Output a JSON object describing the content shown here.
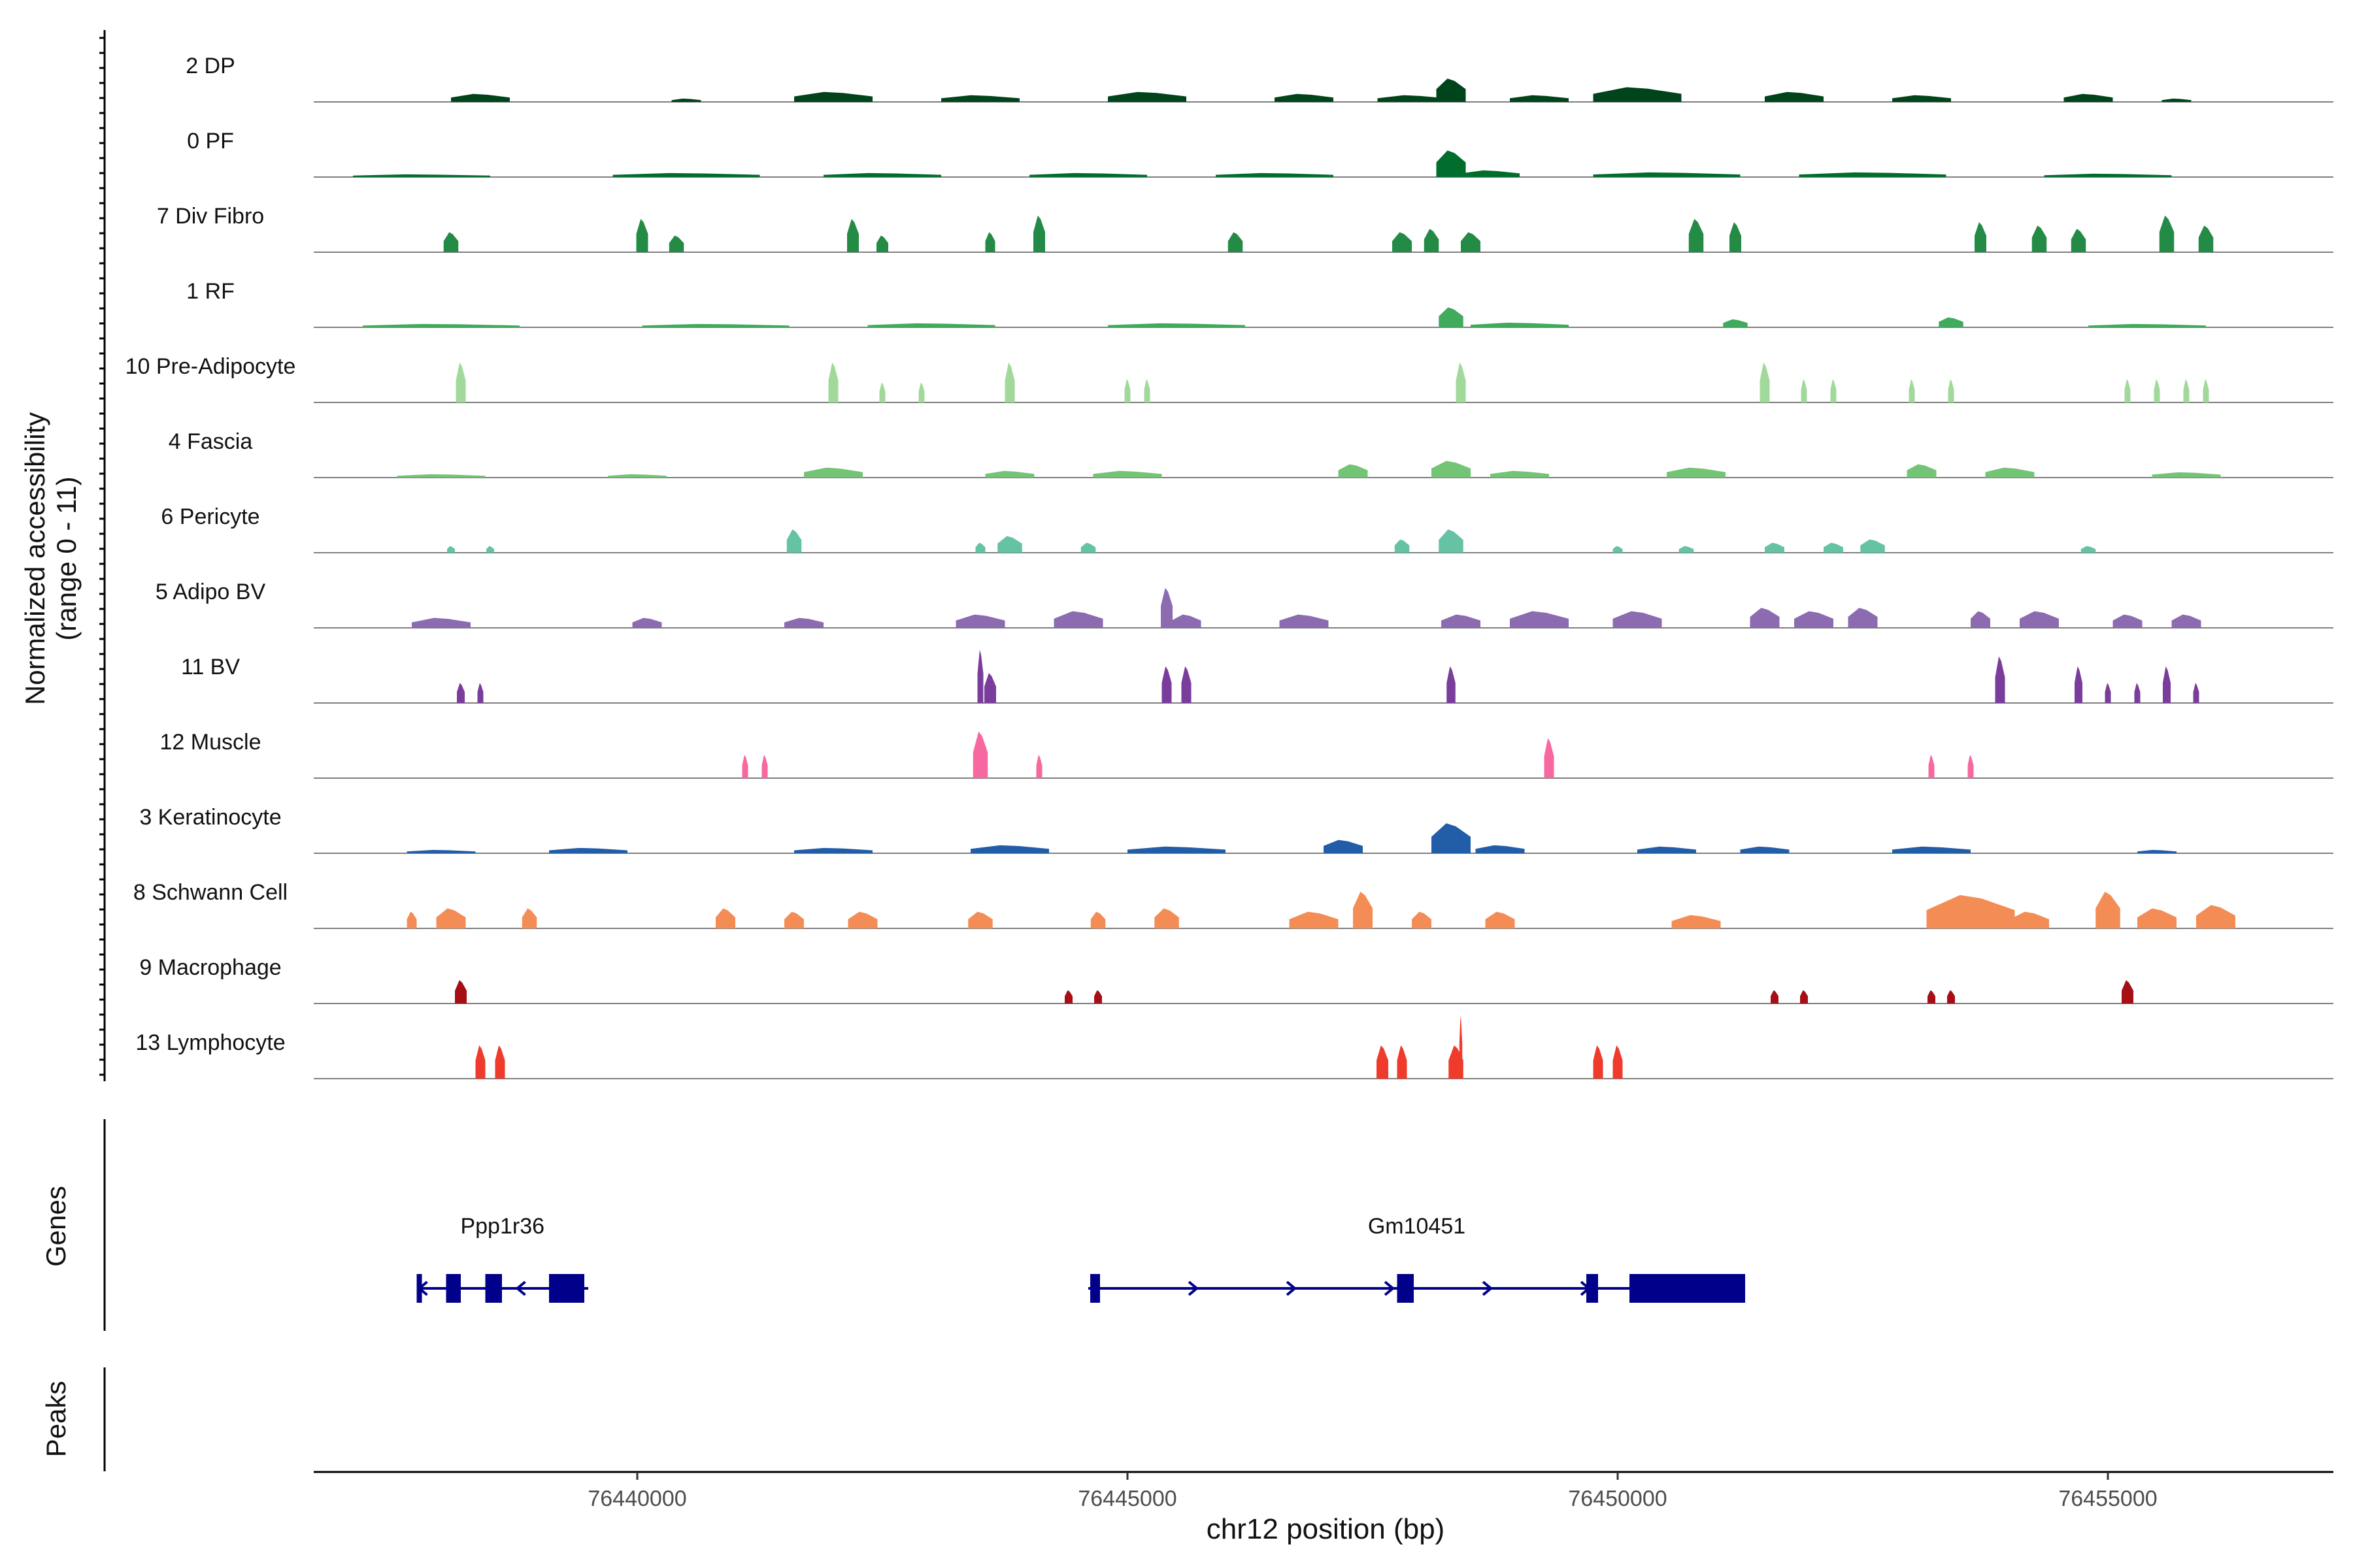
{
  "chart_data": {
    "type": "area",
    "title": "",
    "ylabel_line1": "Normalized accessibility",
    "ylabel_line2": "(range 0 - 11)",
    "xlabel": "chr12 position (bp)",
    "y_range": [
      0,
      11
    ],
    "xlim": [
      76436700,
      76457300
    ],
    "x_ticks": [
      76440000,
      76445000,
      76450000,
      76455000
    ],
    "x_tick_labels": [
      "76440000",
      "76445000",
      "76450000",
      "76455000"
    ],
    "genes_label": "Genes",
    "peaks_label": "Peaks",
    "gene_color": "#00008B",
    "tracks": [
      {
        "name": "2 DP",
        "color": "#00441B",
        "peaks": [
          [
            76438400,
            0.12,
            600
          ],
          [
            76440500,
            0.05,
            300
          ],
          [
            76442000,
            0.15,
            800
          ],
          [
            76443500,
            0.1,
            800
          ],
          [
            76445200,
            0.15,
            800
          ],
          [
            76446800,
            0.12,
            600
          ],
          [
            76447900,
            0.1,
            700
          ],
          [
            76448300,
            0.35,
            300
          ],
          [
            76449200,
            0.1,
            600
          ],
          [
            76450200,
            0.22,
            900
          ],
          [
            76451800,
            0.15,
            600
          ],
          [
            76453100,
            0.1,
            600
          ],
          [
            76454800,
            0.12,
            500
          ],
          [
            76455700,
            0.05,
            300
          ]
        ]
      },
      {
        "name": "0 PF",
        "color": "#006D2C",
        "peaks": [
          [
            76437800,
            0.04,
            1400
          ],
          [
            76440500,
            0.06,
            1500
          ],
          [
            76442500,
            0.06,
            1200
          ],
          [
            76444600,
            0.06,
            1200
          ],
          [
            76446500,
            0.06,
            1200
          ],
          [
            76448300,
            0.4,
            300
          ],
          [
            76448700,
            0.1,
            600
          ],
          [
            76450500,
            0.07,
            1500
          ],
          [
            76452600,
            0.07,
            1500
          ],
          [
            76455000,
            0.05,
            1300
          ]
        ]
      },
      {
        "name": "7 Div Fibro",
        "color": "#238B45",
        "peaks": [
          [
            76438100,
            0.3,
            150
          ],
          [
            76440050,
            0.5,
            120
          ],
          [
            76440400,
            0.25,
            150
          ],
          [
            76442200,
            0.5,
            120
          ],
          [
            76442500,
            0.25,
            120
          ],
          [
            76443600,
            0.3,
            100
          ],
          [
            76444100,
            0.55,
            120
          ],
          [
            76446100,
            0.3,
            150
          ],
          [
            76447800,
            0.3,
            200
          ],
          [
            76448100,
            0.35,
            150
          ],
          [
            76448500,
            0.3,
            200
          ],
          [
            76450800,
            0.5,
            150
          ],
          [
            76451200,
            0.45,
            120
          ],
          [
            76453700,
            0.45,
            120
          ],
          [
            76454300,
            0.4,
            150
          ],
          [
            76454700,
            0.35,
            150
          ],
          [
            76455600,
            0.55,
            150
          ],
          [
            76456000,
            0.4,
            150
          ]
        ]
      },
      {
        "name": "1 RF",
        "color": "#41AB5D",
        "peaks": [
          [
            76438000,
            0.05,
            1600
          ],
          [
            76440800,
            0.05,
            1500
          ],
          [
            76443000,
            0.06,
            1300
          ],
          [
            76445500,
            0.06,
            1400
          ],
          [
            76448300,
            0.3,
            250
          ],
          [
            76449000,
            0.07,
            1000
          ],
          [
            76451200,
            0.12,
            250
          ],
          [
            76453400,
            0.15,
            250
          ],
          [
            76455400,
            0.05,
            1200
          ]
        ]
      },
      {
        "name": "10 Pre-Adipocyte",
        "color": "#A1D99B",
        "peaks": [
          [
            76438200,
            0.6,
            100
          ],
          [
            76442000,
            0.6,
            100
          ],
          [
            76442500,
            0.3,
            60
          ],
          [
            76442900,
            0.3,
            60
          ],
          [
            76443800,
            0.6,
            100
          ],
          [
            76445000,
            0.35,
            60
          ],
          [
            76445200,
            0.35,
            60
          ],
          [
            76448400,
            0.6,
            100
          ],
          [
            76451500,
            0.6,
            100
          ],
          [
            76451900,
            0.35,
            60
          ],
          [
            76452200,
            0.35,
            60
          ],
          [
            76453000,
            0.35,
            60
          ],
          [
            76453400,
            0.35,
            60
          ],
          [
            76455200,
            0.35,
            60
          ],
          [
            76455500,
            0.35,
            60
          ],
          [
            76455800,
            0.35,
            60
          ],
          [
            76456000,
            0.35,
            60
          ]
        ]
      },
      {
        "name": "4 Fascia",
        "color": "#74C476",
        "peaks": [
          [
            76438000,
            0.05,
            900
          ],
          [
            76440000,
            0.05,
            600
          ],
          [
            76442000,
            0.15,
            600
          ],
          [
            76443800,
            0.1,
            500
          ],
          [
            76445000,
            0.1,
            700
          ],
          [
            76447300,
            0.2,
            300
          ],
          [
            76448300,
            0.25,
            400
          ],
          [
            76449000,
            0.1,
            600
          ],
          [
            76450800,
            0.15,
            600
          ],
          [
            76453100,
            0.2,
            300
          ],
          [
            76454000,
            0.15,
            500
          ],
          [
            76455800,
            0.08,
            700
          ]
        ]
      },
      {
        "name": "6 Pericyte",
        "color": "#66C2A4",
        "peaks": [
          [
            76438100,
            0.1,
            80
          ],
          [
            76438500,
            0.1,
            80
          ],
          [
            76441600,
            0.35,
            150
          ],
          [
            76443500,
            0.15,
            100
          ],
          [
            76443800,
            0.25,
            250
          ],
          [
            76444600,
            0.15,
            150
          ],
          [
            76447800,
            0.2,
            150
          ],
          [
            76448300,
            0.35,
            250
          ],
          [
            76450000,
            0.1,
            100
          ],
          [
            76450700,
            0.1,
            150
          ],
          [
            76451600,
            0.15,
            200
          ],
          [
            76452200,
            0.15,
            200
          ],
          [
            76452600,
            0.2,
            250
          ],
          [
            76454800,
            0.1,
            150
          ]
        ]
      },
      {
        "name": "5 Adipo BV",
        "color": "#8C6BB1",
        "peaks": [
          [
            76438000,
            0.15,
            600
          ],
          [
            76440100,
            0.15,
            300
          ],
          [
            76441700,
            0.15,
            400
          ],
          [
            76443500,
            0.2,
            500
          ],
          [
            76444500,
            0.25,
            500
          ],
          [
            76445400,
            0.6,
            120
          ],
          [
            76445600,
            0.2,
            300
          ],
          [
            76446800,
            0.2,
            500
          ],
          [
            76448400,
            0.2,
            400
          ],
          [
            76449200,
            0.25,
            600
          ],
          [
            76450200,
            0.25,
            500
          ],
          [
            76451500,
            0.3,
            300
          ],
          [
            76452000,
            0.25,
            400
          ],
          [
            76452500,
            0.3,
            300
          ],
          [
            76453700,
            0.25,
            200
          ],
          [
            76454300,
            0.25,
            400
          ],
          [
            76455200,
            0.2,
            300
          ],
          [
            76455800,
            0.2,
            300
          ]
        ]
      },
      {
        "name": "11 BV",
        "color": "#7A3D9B",
        "peaks": [
          [
            76438200,
            0.3,
            80
          ],
          [
            76438400,
            0.3,
            60
          ],
          [
            76443500,
            0.8,
            60
          ],
          [
            76443600,
            0.45,
            120
          ],
          [
            76445400,
            0.55,
            100
          ],
          [
            76445600,
            0.55,
            100
          ],
          [
            76448300,
            0.55,
            90
          ],
          [
            76453900,
            0.7,
            100
          ],
          [
            76454700,
            0.55,
            80
          ],
          [
            76455000,
            0.3,
            60
          ],
          [
            76455300,
            0.3,
            60
          ],
          [
            76455600,
            0.55,
            80
          ],
          [
            76455900,
            0.3,
            60
          ]
        ]
      },
      {
        "name": "12 Muscle",
        "color": "#F768A1",
        "peaks": [
          [
            76441100,
            0.35,
            60
          ],
          [
            76441300,
            0.35,
            60
          ],
          [
            76443500,
            0.7,
            150
          ],
          [
            76444100,
            0.35,
            60
          ],
          [
            76449300,
            0.6,
            100
          ],
          [
            76453200,
            0.35,
            60
          ],
          [
            76453600,
            0.35,
            60
          ]
        ]
      },
      {
        "name": "3 Keratinocyte",
        "color": "#225EA8",
        "peaks": [
          [
            76438000,
            0.05,
            700
          ],
          [
            76439500,
            0.08,
            800
          ],
          [
            76442000,
            0.08,
            800
          ],
          [
            76443800,
            0.12,
            800
          ],
          [
            76445500,
            0.1,
            1000
          ],
          [
            76447200,
            0.2,
            400
          ],
          [
            76448300,
            0.45,
            400
          ],
          [
            76448800,
            0.12,
            500
          ],
          [
            76450500,
            0.1,
            600
          ],
          [
            76451500,
            0.1,
            500
          ],
          [
            76453200,
            0.1,
            800
          ],
          [
            76455500,
            0.05,
            400
          ]
        ]
      },
      {
        "name": "8 Schwann Cell",
        "color": "#F48D55",
        "peaks": [
          [
            76437700,
            0.25,
            100
          ],
          [
            76438100,
            0.3,
            300
          ],
          [
            76438900,
            0.3,
            150
          ],
          [
            76440900,
            0.3,
            200
          ],
          [
            76441600,
            0.25,
            200
          ],
          [
            76442300,
            0.25,
            300
          ],
          [
            76443500,
            0.25,
            250
          ],
          [
            76444700,
            0.25,
            150
          ],
          [
            76445400,
            0.3,
            250
          ],
          [
            76446900,
            0.25,
            500
          ],
          [
            76447400,
            0.55,
            200
          ],
          [
            76448000,
            0.25,
            200
          ],
          [
            76448800,
            0.25,
            300
          ],
          [
            76450800,
            0.2,
            500
          ],
          [
            76453600,
            0.5,
            900
          ],
          [
            76454200,
            0.25,
            400
          ],
          [
            76455000,
            0.55,
            250
          ],
          [
            76455500,
            0.3,
            400
          ],
          [
            76456100,
            0.35,
            400
          ]
        ]
      },
      {
        "name": "9 Macrophage",
        "color": "#A50F15",
        "peaks": [
          [
            76438200,
            0.35,
            120
          ],
          [
            76444400,
            0.2,
            80
          ],
          [
            76444700,
            0.2,
            80
          ],
          [
            76451600,
            0.2,
            80
          ],
          [
            76451900,
            0.2,
            80
          ],
          [
            76453200,
            0.2,
            80
          ],
          [
            76453400,
            0.2,
            80
          ],
          [
            76455200,
            0.35,
            120
          ]
        ]
      },
      {
        "name": "13 Lymphocyte",
        "color": "#EF3B2C",
        "peaks": [
          [
            76438400,
            0.5,
            100
          ],
          [
            76438600,
            0.5,
            100
          ],
          [
            76447600,
            0.5,
            120
          ],
          [
            76447800,
            0.5,
            100
          ],
          [
            76448350,
            0.5,
            150
          ],
          [
            76448400,
            0.95,
            30
          ],
          [
            76449800,
            0.5,
            100
          ],
          [
            76450000,
            0.5,
            100
          ]
        ]
      }
    ],
    "genes": [
      {
        "name": "Ppp1r36",
        "start": 76437750,
        "end": 76439500,
        "strand": "-",
        "exons": [
          [
            76437750,
            76437790
          ],
          [
            76438050,
            76438200
          ],
          [
            76438450,
            76438620
          ],
          [
            76439100,
            76439460
          ]
        ]
      },
      {
        "name": "Gm10451",
        "start": 76444600,
        "end": 76451300,
        "strand": "+",
        "exons": [
          [
            76444620,
            76444720
          ],
          [
            76447750,
            76447920
          ],
          [
            76449680,
            76449800
          ],
          [
            76450120,
            76451300
          ]
        ]
      }
    ]
  }
}
